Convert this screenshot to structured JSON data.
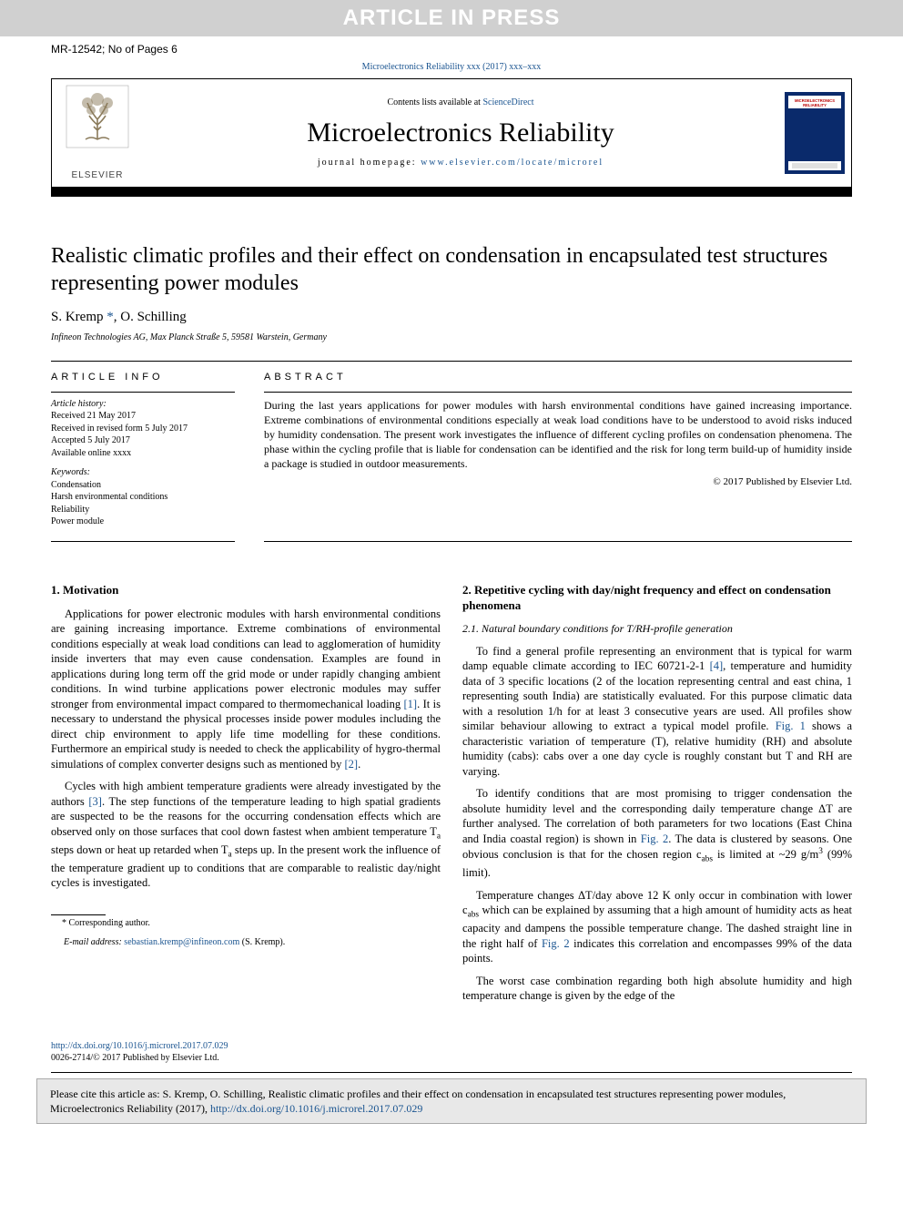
{
  "banner": "ARTICLE IN PRESS",
  "page_info": "MR-12542; No of Pages 6",
  "journal_ref": "Microelectronics Reliability xxx (2017) xxx–xxx",
  "header": {
    "contents_prefix": "Contents lists available at ",
    "contents_link": "ScienceDirect",
    "journal_title": "Microelectronics Reliability",
    "homepage_prefix": "journal homepage: ",
    "homepage_link": "www.elsevier.com/locate/microrel",
    "publisher": "ELSEVIER",
    "cover_title1": "MICROELECTRONICS",
    "cover_title2": "RELIABILITY"
  },
  "article": {
    "title": "Realistic climatic profiles and their effect on condensation in encapsulated test structures representing power modules",
    "authors_html": "S. Kremp <span class='ast'>*</span>, O. Schilling",
    "affiliation": "Infineon Technologies AG, Max Planck Straße 5, 59581 Warstein, Germany"
  },
  "info": {
    "label": "article info",
    "history_hdr": "Article history:",
    "history": [
      "Received 21 May 2017",
      "Received in revised form 5 July 2017",
      "Accepted 5 July 2017",
      "Available online xxxx"
    ],
    "keywords_hdr": "Keywords:",
    "keywords": [
      "Condensation",
      "Harsh environmental conditions",
      "Reliability",
      "Power module"
    ]
  },
  "abstract": {
    "label": "abstract",
    "text": "During the last years applications for power modules with harsh environmental conditions have gained increasing importance. Extreme combinations of environmental conditions especially at weak load conditions have to be understood to avoid risks induced by humidity condensation. The present work investigates the influence of different cycling profiles on condensation phenomena. The phase within the cycling profile that is liable for condensation can be identified and the risk for long term build-up of humidity inside a package is studied in outdoor measurements.",
    "copyright": "© 2017 Published by Elsevier Ltd."
  },
  "body": {
    "s1_title": "1. Motivation",
    "s1_p1": "Applications for power electronic modules with harsh environmental conditions are gaining increasing importance. Extreme combinations of environmental conditions especially at weak load conditions can lead to agglomeration of humidity inside inverters that may even cause condensation. Examples are found in applications during long term off the grid mode or under rapidly changing ambient conditions. In wind turbine applications power electronic modules may suffer stronger from environmental impact compared to thermomechanical loading ",
    "ref1": "[1]",
    "s1_p1b": ". It is necessary to understand the physical processes inside power modules including the direct chip environment to apply life time modelling for these conditions. Furthermore an empirical study is needed to check the applicability of hygro-thermal simulations of complex converter designs such as mentioned by ",
    "ref2": "[2]",
    "s1_p2a": "Cycles with high ambient temperature gradients were already investigated by the authors ",
    "ref3": "[3]",
    "s1_p2b": ". The step functions of the temperature leading to high spatial gradients are suspected to be the reasons for the occurring condensation effects which are observed only on those surfaces that cool down fastest when ambient temperature T",
    "s1_p2c": " steps down or heat up retarded when T",
    "s1_p2d": " steps up. In the present work the influence of the temperature gradient up to conditions that are comparable to realistic day/night cycles is investigated.",
    "s2_title": "2. Repetitive cycling with day/night frequency and effect on condensation phenomena",
    "s21_title": "2.1. Natural boundary conditions for T/RH-profile generation",
    "s21_p1a": "To find a general profile representing an environment that is typical for warm damp equable climate according to IEC 60721-2-1 ",
    "ref4": "[4]",
    "s21_p1b": ", temperature and humidity data of 3 specific locations (2 of the location representing central and east china, 1 representing south India) are statistically evaluated. For this purpose climatic data with a resolution 1/h for at least 3 consecutive years are used. All profiles show similar behaviour allowing to extract a typical model profile. ",
    "fig1": "Fig. 1",
    "s21_p1c": " shows a characteristic variation of temperature (T), relative humidity (RH) and absolute humidity (cabs): cabs over a one day cycle is roughly constant but T and RH are varying.",
    "s21_p2a": "To identify conditions that are most promising to trigger condensation the absolute humidity level and the corresponding daily temperature change ΔT are further analysed. The correlation of both parameters for two locations (East China and India coastal region) is shown in ",
    "fig2": "Fig. 2",
    "s21_p2b": ". The data is clustered by seasons. One obvious conclusion is that for the chosen region c",
    "s21_p2c": " is limited at ~29 g/m",
    "s21_p2d": " (99% limit).",
    "s21_p3a": "Temperature changes ΔT/day above 12 K only occur in combination with lower c",
    "s21_p3b": " which can be explained by assuming that a high amount of humidity acts as heat capacity and dampens the possible temperature change. The dashed straight line in the right half of ",
    "s21_p3c": " indicates this correlation and encompasses 99% of the data points.",
    "s21_p4": "The worst case combination regarding both high absolute humidity and high temperature change is given by the edge of the"
  },
  "footnote": {
    "corr": "* Corresponding author.",
    "email_label": "E-mail address: ",
    "email": "sebastian.kremp@infineon.com",
    "email_suffix": " (S. Kremp)."
  },
  "doi": {
    "link": "http://dx.doi.org/10.1016/j.microrel.2017.07.029",
    "line2": "0026-2714/© 2017 Published by Elsevier Ltd."
  },
  "cite": {
    "text": "Please cite this article as: S. Kremp, O. Schilling, Realistic climatic profiles and their effect on condensation in encapsulated test structures representing power modules, Microelectronics Reliability (2017), ",
    "link": "http://dx.doi.org/10.1016/j.microrel.2017.07.029"
  },
  "colors": {
    "link": "#1a5490",
    "banner_bg": "#d0d0d0",
    "cite_bg": "#e8e8e8",
    "cover_bg": "#0a2a6b"
  }
}
